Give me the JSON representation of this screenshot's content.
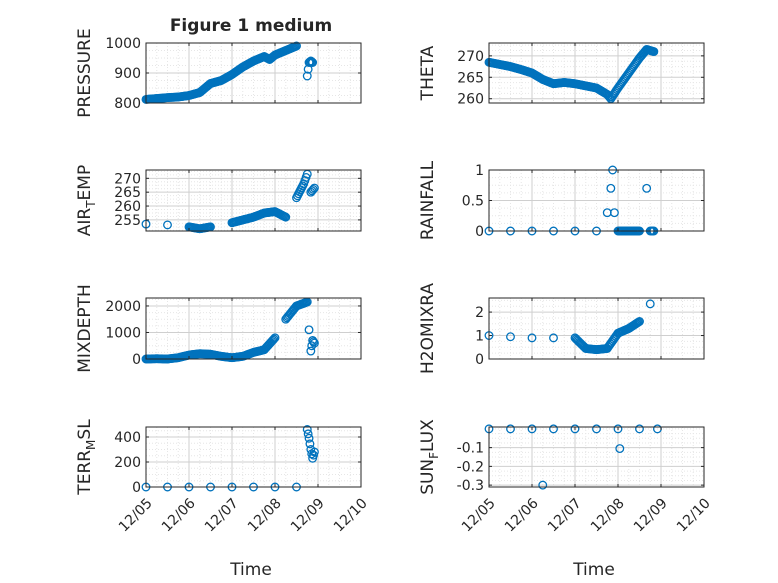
{
  "figure_title": "Figure 1 medium",
  "x_axis_label": "Time",
  "x_tick_labels": [
    "12/05",
    "12/06",
    "12/07",
    "12/08",
    "12/09",
    "12/10"
  ],
  "colors": {
    "marker": "#0072BD",
    "axes": "#262626",
    "grid": "#d9d9d9"
  },
  "chart_data": [
    {
      "type": "scatter",
      "ylabel": "PRESSURE",
      "xlim": [
        "12/05",
        "12/10"
      ],
      "ylim": [
        800,
        1000
      ],
      "yticks": [
        800,
        900,
        1000
      ],
      "grid": true,
      "x": [
        "12/05 00:00",
        "12/05 06:00",
        "12/05 12:00",
        "12/05 18:00",
        "12/06 00:00",
        "12/06 06:00",
        "12/06 12:00",
        "12/06 18:00",
        "12/07 00:00",
        "12/07 06:00",
        "12/07 12:00",
        "12/07 18:00",
        "12/07 21:00",
        "12/08 00:00",
        "12/08 06:00",
        "12/08 12:00",
        "12/08 18:00",
        "12/08 19:00",
        "12/08 20:00",
        "12/08 21:00"
      ],
      "y": [
        812,
        815,
        818,
        820,
        825,
        835,
        865,
        875,
        895,
        920,
        940,
        955,
        945,
        960,
        975,
        990,
        890,
        935,
        940,
        935
      ]
    },
    {
      "type": "scatter",
      "ylabel": "THETA",
      "xlim": [
        "12/05",
        "12/10"
      ],
      "ylim": [
        259,
        273
      ],
      "yticks": [
        260,
        265,
        270
      ],
      "grid": true,
      "x": [
        "12/05 00:00",
        "12/05 06:00",
        "12/05 12:00",
        "12/05 18:00",
        "12/06 00:00",
        "12/06 06:00",
        "12/06 12:00",
        "12/06 18:00",
        "12/07 00:00",
        "12/07 06:00",
        "12/07 12:00",
        "12/07 18:00",
        "12/07 20:00",
        "12/08 00:00",
        "12/08 06:00",
        "12/08 12:00",
        "12/08 16:00",
        "12/08 20:00"
      ],
      "y": [
        268.5,
        268,
        267.5,
        266.8,
        266,
        264.5,
        263.5,
        263.8,
        263.5,
        263,
        262.5,
        261,
        260,
        262.5,
        266,
        269.5,
        271.5,
        271
      ]
    },
    {
      "type": "scatter",
      "ylabel": "AIR_TEMP",
      "xlim": [
        "12/05",
        "12/10"
      ],
      "ylim": [
        251,
        273
      ],
      "yticks": [
        255,
        260,
        265,
        270
      ],
      "grid": true,
      "x": [
        "12/05 00:00",
        "12/05 12:00",
        "12/06 00:00",
        "12/06 06:00",
        "12/06 12:00",
        "12/07 00:00",
        "12/07 06:00",
        "12/07 12:00",
        "12/07 18:00",
        "12/08 00:00",
        "12/08 06:00",
        "12/08 12:00",
        "12/08 16:00",
        "12/08 18:00",
        "12/08 20:00",
        "12/08 22:00"
      ],
      "y": [
        253.5,
        253.2,
        252.5,
        251.8,
        252.5,
        254,
        255,
        256,
        257.5,
        258,
        256,
        263,
        268,
        271.5,
        265,
        266.5
      ]
    },
    {
      "type": "scatter",
      "ylabel": "RAINFALL",
      "xlim": [
        "12/05",
        "12/10"
      ],
      "ylim": [
        0,
        1
      ],
      "yticks": [
        0,
        0.5,
        1
      ],
      "grid": true,
      "x": [
        "12/05 00:00",
        "12/05 12:00",
        "12/06 00:00",
        "12/06 12:00",
        "12/07 00:00",
        "12/07 12:00",
        "12/07 18:00",
        "12/07 20:00",
        "12/07 21:00",
        "12/07 22:00",
        "12/08 00:00",
        "12/08 06:00",
        "12/08 12:00",
        "12/08 16:00",
        "12/08 18:00",
        "12/08 20:00"
      ],
      "y": [
        0,
        0,
        0,
        0,
        0,
        0,
        0.3,
        0.7,
        1.0,
        0.3,
        0,
        0,
        0,
        0.7,
        0,
        0
      ]
    },
    {
      "type": "scatter",
      "ylabel": "MIXDEPTH",
      "xlim": [
        "12/05",
        "12/10"
      ],
      "ylim": [
        0,
        2300
      ],
      "yticks": [
        0,
        1000,
        2000
      ],
      "grid": true,
      "x": [
        "12/05 00:00",
        "12/05 06:00",
        "12/05 12:00",
        "12/05 18:00",
        "12/06 00:00",
        "12/06 06:00",
        "12/06 12:00",
        "12/06 18:00",
        "12/07 00:00",
        "12/07 06:00",
        "12/07 12:00",
        "12/07 18:00",
        "12/08 00:00",
        "12/08 06:00",
        "12/08 12:00",
        "12/08 18:00",
        "12/08 19:00",
        "12/08 20:00",
        "12/08 21:00",
        "12/08 22:00"
      ],
      "y": [
        0,
        10,
        0,
        50,
        150,
        200,
        180,
        100,
        50,
        100,
        250,
        350,
        800,
        1500,
        2000,
        2150,
        1100,
        300,
        700,
        600
      ]
    },
    {
      "type": "scatter",
      "ylabel": "H2OMIXRA",
      "xlim": [
        "12/05",
        "12/10"
      ],
      "ylim": [
        0,
        2.6
      ],
      "yticks": [
        0,
        1,
        2
      ],
      "grid": true,
      "x": [
        "12/05 00:00",
        "12/05 12:00",
        "12/06 00:00",
        "12/06 12:00",
        "12/07 00:00",
        "12/07 06:00",
        "12/07 12:00",
        "12/07 18:00",
        "12/08 00:00",
        "12/08 06:00",
        "12/08 12:00",
        "12/08 18:00"
      ],
      "y": [
        1.0,
        0.95,
        0.9,
        0.9,
        0.9,
        0.45,
        0.4,
        0.45,
        1.1,
        1.3,
        1.6,
        2.35
      ]
    },
    {
      "type": "scatter",
      "ylabel": "TERR_MSL",
      "xlim": [
        "12/05",
        "12/10"
      ],
      "ylim": [
        0,
        480
      ],
      "yticks": [
        0,
        200,
        400
      ],
      "grid": true,
      "x": [
        "12/05 00:00",
        "12/05 12:00",
        "12/06 00:00",
        "12/06 12:00",
        "12/07 00:00",
        "12/07 12:00",
        "12/08 00:00",
        "12/08 12:00",
        "12/08 18:00",
        "12/08 19:00",
        "12/08 20:00",
        "12/08 21:00",
        "12/08 22:00"
      ],
      "y": [
        0,
        0,
        0,
        0,
        0,
        0,
        0,
        0,
        460,
        390,
        300,
        230,
        280
      ]
    },
    {
      "type": "scatter",
      "ylabel": "SUN_FLUX",
      "xlim": [
        "12/05",
        "12/10"
      ],
      "ylim": [
        -0.31,
        0.01
      ],
      "yticks": [
        -0.3,
        -0.2,
        -0.1
      ],
      "grid": true,
      "x": [
        "12/05 00:00",
        "12/05 12:00",
        "12/06 00:00",
        "12/06 06:00",
        "12/06 12:00",
        "12/07 00:00",
        "12/07 12:00",
        "12/08 00:00",
        "12/08 01:00",
        "12/08 12:00",
        "12/08 22:00"
      ],
      "y": [
        0,
        0,
        0,
        -0.3,
        0,
        0,
        0,
        0,
        -0.105,
        0,
        0
      ]
    }
  ]
}
